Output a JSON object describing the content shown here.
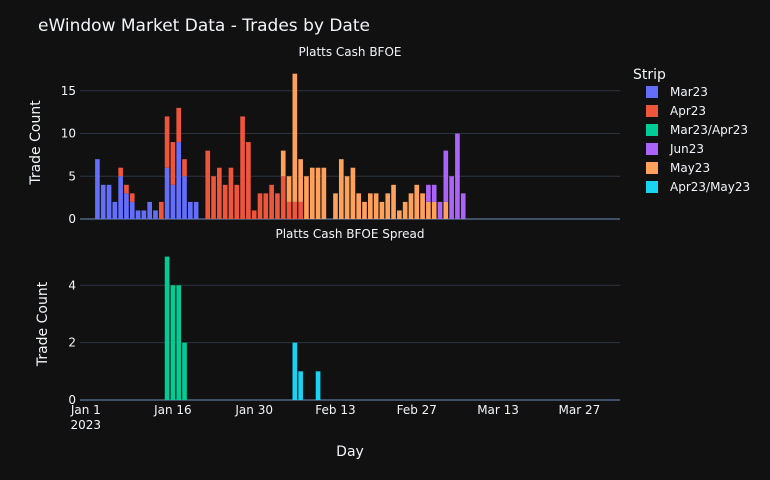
{
  "title": "eWindow Market Data - Trades by Date",
  "legend": {
    "title": "Strip",
    "items": [
      {
        "name": "Mar23",
        "color": "#636efa"
      },
      {
        "name": "Apr23",
        "color": "#ef553b"
      },
      {
        "name": "Mar23/Apr23",
        "color": "#00cc96"
      },
      {
        "name": "Jun23",
        "color": "#ab63fa"
      },
      {
        "name": "May23",
        "color": "#ffa15a"
      },
      {
        "name": "Apr23/May23",
        "color": "#19d3f3"
      }
    ]
  },
  "xlabel": "Day",
  "xticks": [
    {
      "date": "2023-01-01",
      "label": "Jan 1",
      "sub": "2023"
    },
    {
      "date": "2023-01-16",
      "label": "Jan 16",
      "sub": ""
    },
    {
      "date": "2023-01-30",
      "label": "Jan 30",
      "sub": ""
    },
    {
      "date": "2023-02-13",
      "label": "Feb 13",
      "sub": ""
    },
    {
      "date": "2023-02-27",
      "label": "Feb 27",
      "sub": ""
    },
    {
      "date": "2023-03-13",
      "label": "Mar 13",
      "sub": ""
    },
    {
      "date": "2023-03-27",
      "label": "Mar 27",
      "sub": ""
    }
  ],
  "chart_data": [
    {
      "type": "bar",
      "title": "Platts Cash BFOE",
      "ylabel": "Trade Count",
      "ylim": [
        0,
        17.9
      ],
      "yticks": [
        0,
        5,
        10,
        15
      ],
      "xlim": [
        "2022-12-31",
        "2023-04-03"
      ],
      "grid": true,
      "stacked": true,
      "series": [
        {
          "name": "Mar23",
          "color": "#636efa",
          "points": [
            [
              "2023-01-03",
              7
            ],
            [
              "2023-01-04",
              4
            ],
            [
              "2023-01-05",
              4
            ],
            [
              "2023-01-06",
              2
            ],
            [
              "2023-01-07",
              5
            ],
            [
              "2023-01-08",
              3
            ],
            [
              "2023-01-09",
              2
            ],
            [
              "2023-01-10",
              1
            ],
            [
              "2023-01-11",
              1
            ],
            [
              "2023-01-12",
              2
            ],
            [
              "2023-01-13",
              1
            ],
            [
              "2023-01-15",
              6
            ],
            [
              "2023-01-16",
              4
            ],
            [
              "2023-01-17",
              9
            ],
            [
              "2023-01-18",
              5
            ],
            [
              "2023-01-19",
              2
            ],
            [
              "2023-01-20",
              2
            ]
          ]
        },
        {
          "name": "Apr23",
          "color": "#ef553b",
          "points": [
            [
              "2023-01-07",
              1
            ],
            [
              "2023-01-08",
              1
            ],
            [
              "2023-01-09",
              1
            ],
            [
              "2023-01-14",
              2
            ],
            [
              "2023-01-15",
              6
            ],
            [
              "2023-01-16",
              5
            ],
            [
              "2023-01-17",
              4
            ],
            [
              "2023-01-18",
              2
            ],
            [
              "2023-01-22",
              8
            ],
            [
              "2023-01-23",
              5
            ],
            [
              "2023-01-24",
              6
            ],
            [
              "2023-01-25",
              4
            ],
            [
              "2023-01-26",
              6
            ],
            [
              "2023-01-27",
              4
            ],
            [
              "2023-01-28",
              12
            ],
            [
              "2023-01-29",
              9
            ],
            [
              "2023-01-30",
              1
            ],
            [
              "2023-01-31",
              3
            ],
            [
              "2023-02-01",
              3
            ],
            [
              "2023-02-02",
              4
            ],
            [
              "2023-02-03",
              3
            ],
            [
              "2023-02-04",
              5
            ],
            [
              "2023-02-05",
              2
            ],
            [
              "2023-02-06",
              2
            ],
            [
              "2023-02-07",
              2
            ]
          ]
        },
        {
          "name": "May23",
          "color": "#ffa15a",
          "points": [
            [
              "2023-02-04",
              3
            ],
            [
              "2023-02-05",
              3
            ],
            [
              "2023-02-06",
              15
            ],
            [
              "2023-02-07",
              5
            ],
            [
              "2023-02-08",
              5
            ],
            [
              "2023-02-09",
              6
            ],
            [
              "2023-02-10",
              6
            ],
            [
              "2023-02-11",
              6
            ],
            [
              "2023-02-13",
              3
            ],
            [
              "2023-02-14",
              7
            ],
            [
              "2023-02-15",
              5
            ],
            [
              "2023-02-16",
              6
            ],
            [
              "2023-02-17",
              3
            ],
            [
              "2023-02-18",
              2
            ],
            [
              "2023-02-19",
              3
            ],
            [
              "2023-02-20",
              3
            ],
            [
              "2023-02-21",
              2
            ],
            [
              "2023-02-22",
              3
            ],
            [
              "2023-02-23",
              4
            ],
            [
              "2023-02-24",
              1
            ],
            [
              "2023-02-25",
              2
            ],
            [
              "2023-02-26",
              3
            ],
            [
              "2023-02-27",
              4
            ],
            [
              "2023-02-28",
              3
            ],
            [
              "2023-03-01",
              2
            ],
            [
              "2023-03-02",
              2
            ],
            [
              "2023-03-04",
              2
            ]
          ]
        },
        {
          "name": "Jun23",
          "color": "#ab63fa",
          "points": [
            [
              "2023-03-01",
              2
            ],
            [
              "2023-03-02",
              2
            ],
            [
              "2023-03-03",
              2
            ],
            [
              "2023-03-04",
              6
            ],
            [
              "2023-03-05",
              5
            ],
            [
              "2023-03-06",
              10
            ],
            [
              "2023-03-07",
              3
            ]
          ]
        }
      ]
    },
    {
      "type": "bar",
      "title": "Platts Cash BFOE Spread",
      "ylabel": "Trade Count",
      "ylim": [
        0,
        5.3
      ],
      "yticks": [
        0,
        2,
        4
      ],
      "xlim": [
        "2022-12-31",
        "2023-04-03"
      ],
      "grid": true,
      "stacked": true,
      "series": [
        {
          "name": "Mar23/Apr23",
          "color": "#00cc96",
          "points": [
            [
              "2023-01-15",
              5
            ],
            [
              "2023-01-16",
              4
            ],
            [
              "2023-01-17",
              4
            ],
            [
              "2023-01-18",
              2
            ]
          ]
        },
        {
          "name": "Apr23/May23",
          "color": "#19d3f3",
          "points": [
            [
              "2023-02-06",
              2
            ],
            [
              "2023-02-07",
              1
            ],
            [
              "2023-02-10",
              1
            ]
          ]
        }
      ]
    }
  ]
}
